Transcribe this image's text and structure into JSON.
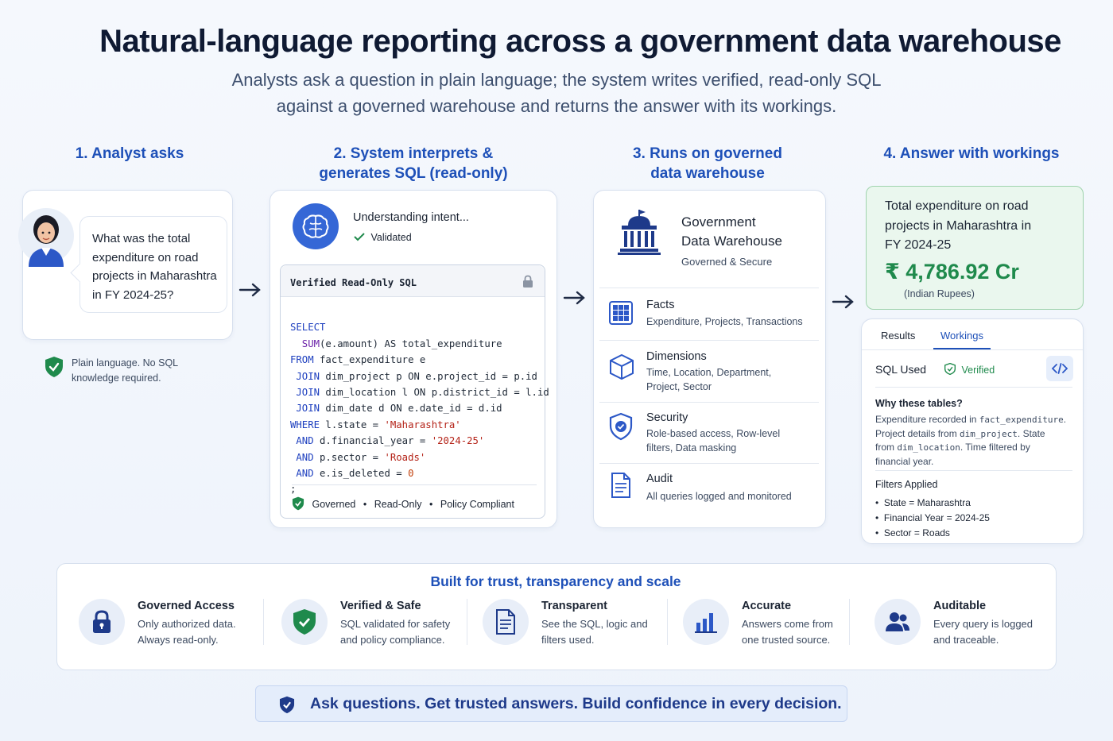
{
  "header": {
    "title": "Natural-language reporting across a government data warehouse",
    "subtitle_line1": "Analysts ask a question in plain language; the system writes verified, read-only SQL",
    "subtitle_line2": "against a governed warehouse and returns the answer with its workings."
  },
  "steps": {
    "s1": "1. Analyst asks",
    "s2_line1": "2. System interprets &",
    "s2_line2": "generates SQL (read-only)",
    "s3_line1": "3. Runs on governed",
    "s3_line2": "data warehouse",
    "s4": "4. Answer with workings"
  },
  "analyst": {
    "q1": "What was the total",
    "q2": "expenditure on road",
    "q3": "projects in Maharashtra",
    "q4": "in FY 2024-25?",
    "note1": "Plain language. No SQL",
    "note2": "knowledge required."
  },
  "system": {
    "status": "Understanding intent...",
    "validated": "Validated",
    "sql_header": "Verified Read-Only SQL",
    "sql_lines": [
      {
        "kw": "SELECT",
        "rest": ""
      },
      {
        "kw": "  SUM",
        "rest": "(e.amount) AS total_expenditure"
      },
      {
        "kw": "FROM",
        "rest": " fact_expenditure e"
      },
      {
        "kw": " JOIN",
        "rest": " dim_project p ON e.project_id = p.id"
      },
      {
        "kw": " JOIN",
        "rest": " dim_location l ON p.district_id = l.id"
      },
      {
        "kw": " JOIN",
        "rest": " dim_date d ON e.date_id = d.id"
      },
      {
        "kw": "WHERE",
        "rest": " l.state = ",
        "str": "'Maharashtra'"
      },
      {
        "kw": " AND",
        "rest": " d.financial_year = ",
        "str": "'2024-25'"
      },
      {
        "kw": " AND",
        "rest": " p.sector = ",
        "str": "'Roads'"
      },
      {
        "kw": " AND",
        "rest": " e.is_deleted = ",
        "num": "0"
      },
      {
        "kw": "",
        "rest": ";"
      }
    ],
    "foot_governed": "Governed",
    "foot_readonly": "Read-Only",
    "foot_policy": "Policy Compliant"
  },
  "warehouse": {
    "name_line1": "Government",
    "name_line2": "Data Warehouse",
    "tag": "Governed & Secure",
    "facts_title": "Facts",
    "facts_desc": "Expenditure, Projects, Transactions",
    "dims_title": "Dimensions",
    "dims_desc1": "Time, Location, Department,",
    "dims_desc2": "Project, Sector",
    "sec_title": "Security",
    "sec_desc1": "Role-based access, Row-level",
    "sec_desc2": "filters, Data masking",
    "audit_title": "Audit",
    "audit_desc": "All queries logged and monitored"
  },
  "answer": {
    "q1": "Total expenditure on road",
    "q2": "projects in Maharashtra in",
    "q3": "FY 2024-25",
    "value": "₹ 4,786.92 Cr",
    "unit": "(Indian Rupees)",
    "tab_results": "Results",
    "tab_workings": "Workings",
    "sql_used": "SQL Used",
    "verified": "Verified",
    "why_title": "Why these tables?",
    "why_1a": "Expenditure recorded in ",
    "why_1b": "fact_expenditure",
    "why_1c": ".",
    "why_2a": "Project details from ",
    "why_2b": "dim_project",
    "why_2c": ". State",
    "why_3a": "from ",
    "why_3b": "dim_location",
    "why_3c": ". Time filtered by",
    "why_4": "financial year.",
    "filters_title": "Filters Applied",
    "filters": [
      "State = Maharashtra",
      "Financial Year = 2024-25",
      "Sector = Roads"
    ]
  },
  "trust": {
    "title": "Built for trust, transparency and scale",
    "features": [
      {
        "h": "Governed Access",
        "p1": "Only authorized data.",
        "p2": "Always read-only."
      },
      {
        "h": "Verified & Safe",
        "p1": "SQL validated for safety",
        "p2": "and policy compliance."
      },
      {
        "h": "Transparent",
        "p1": "See the SQL, logic and",
        "p2": "filters used."
      },
      {
        "h": "Accurate",
        "p1": "Answers come from",
        "p2": "one trusted source."
      },
      {
        "h": "Auditable",
        "p1": "Every query is logged",
        "p2": "and traceable."
      }
    ]
  },
  "banner": "Ask questions. Get trusted answers. Build confidence in every decision.",
  "colors": {
    "accent": "#1e50b8",
    "success": "#1f8a4c",
    "navy": "#1e3a8a"
  }
}
